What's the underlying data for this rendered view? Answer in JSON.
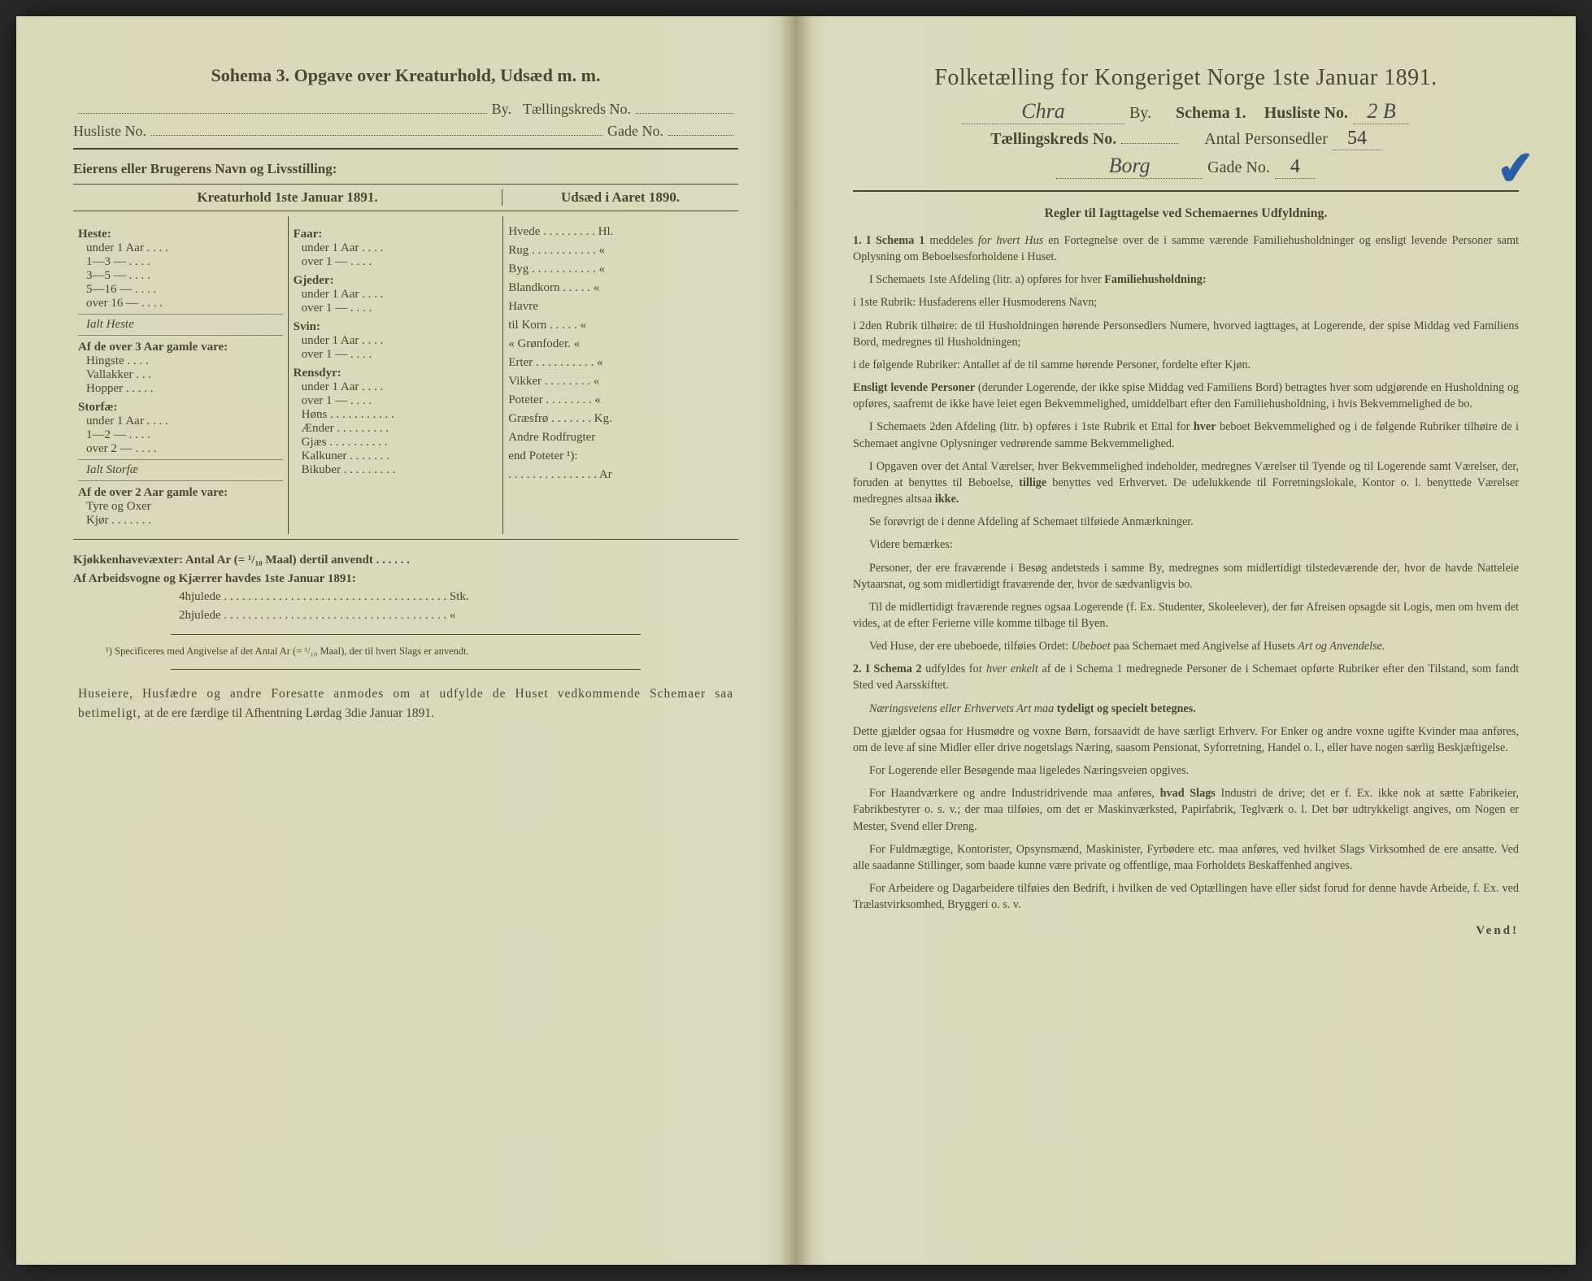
{
  "colors": {
    "paper": "#d9d8b8",
    "ink": "#4a4832",
    "handwriting": "#4a4a4a",
    "blue_pencil": "#2a5fa8"
  },
  "left": {
    "title": "Sohema 3.  Opgave over Kreaturhold, Udsæd m. m.",
    "line1_a": "By.",
    "line1_b": "Tællingskreds No.",
    "line2_a": "Husliste No.",
    "line2_b": "Gade No.",
    "owner_label": "Eierens eller Brugerens Navn og Livsstilling:",
    "col_head_left": "Kreaturhold 1ste Januar 1891.",
    "col_head_right": "Udsæd i Aaret 1890.",
    "groups_col1": [
      {
        "head": "Heste:",
        "items": [
          "under 1 Aar . . . .",
          "1—3  —  . . . .",
          "3—5  —  . . . .",
          "5—16  —  . . . .",
          "over 16 —  . . . ."
        ],
        "tail_italic": "Ialt Heste"
      },
      {
        "head": "Af de over 3 Aar gamle vare:",
        "items": [
          "Hingste . . . .",
          "Vallakker . . .",
          "Hopper . . . . ."
        ]
      },
      {
        "head": "Storfæ:",
        "items": [
          "under 1 Aar . . . .",
          "1—2  —  . . . .",
          "over 2  —  . . . ."
        ],
        "tail_italic": "Ialt Storfæ"
      },
      {
        "head": "Af de over 2 Aar gamle vare:",
        "items": [
          "Tyre og Oxer",
          "Kjør . . . . . . ."
        ]
      }
    ],
    "groups_col2": [
      {
        "head": "Faar:",
        "items": [
          "under 1 Aar . . . .",
          "over 1  —  . . . ."
        ]
      },
      {
        "head": "Gjeder:",
        "items": [
          "under 1 Aar . . . .",
          "over 1  —  . . . ."
        ]
      },
      {
        "head": "Svin:",
        "items": [
          "under 1 Aar . . . .",
          "over 1  —  . . . ."
        ]
      },
      {
        "head": "Rensdyr:",
        "items": [
          "under 1 Aar . . . .",
          "over 1  —  . . . ."
        ]
      },
      {
        "head": "",
        "items": [
          "Høns . . . . . . . . . . .",
          "Ænder . . . . . . . . .",
          "Gjæs . . . . . . . . . .",
          "Kalkuner . . . . . . ."
        ]
      },
      {
        "head": "",
        "items": [
          "Bikuber . . . . . . . . ."
        ]
      }
    ],
    "col3_items": [
      "Hvede . . . . . . . . . Hl.",
      "Rug . . . . . . . . . . .  «",
      "Byg . . . . . . . . . . .  «",
      "Blandkorn . . . . .  «",
      "Havre",
      "   til Korn . . . . .  «",
      "   « Grønfoder.  «",
      "Erter . . . . . . . . . .  «",
      "Vikker . . . . . . . .  «",
      "Poteter . . . . . . . .  «",
      "Græsfrø . . . . . . . Kg.",
      "Andre Rodfrugter",
      "   end Poteter ¹):",
      ". . . . . . . . . . . . . . . Ar"
    ],
    "kjokken": "Kjøkkenhavevæxter:  Antal Ar (= ¹/₁₀ Maal) dertil anvendt . . . . . .",
    "arbeids_label": "Af Arbeidsvogne og Kjærrer havdes 1ste Januar 1891:",
    "arbeids_4": "4hjulede . . . . . . . . . . . . . . . . . . . . . . . . . . . . . . . . . . . . . Stk.",
    "arbeids_2": "2hjulede . . . . . . . . . . . . . . . . . . . . . . . . . . . . . . . . . . . . .  «",
    "footnote": "¹) Specificeres med Angivelse af det Antal Ar (= ¹/₁₀ Maal), der til hvert Slags er anvendt.",
    "closing_a": "Huseiere, Husfædre og andre Foresatte anmodes om at udfylde de Huset vedkommende Schemaer saa betimeligt,",
    "closing_b": " at de ere færdige til Afhentning Lørdag 3die Januar 1891."
  },
  "right": {
    "title": "Folketælling for Kongeriget Norge 1ste Januar 1891.",
    "city_hand": "Chra",
    "by_label": "By.",
    "schema_label": "Schema 1.",
    "husliste_label": "Husliste No.",
    "husliste_hand": "2 B",
    "kreds_label": "Tællingskreds No.",
    "kreds_hand": "",
    "antal_label": "Antal Personsedler",
    "antal_hand": "54",
    "gade_hand_prefix": "Borg",
    "gade_label": "Gade No.",
    "gade_hand": "4",
    "check": "✔",
    "rules_title": "Regler til Iagttagelse ved Schemaernes Udfyldning.",
    "p1_a": "1.  I Schema 1",
    "p1_b": " meddeles ",
    "p1_c": "for hvert Hus",
    "p1_d": " en Fortegnelse over de i samme værende Familiehusholdninger og ensligt levende Personer samt Oplysning om Beboelsesforholdene i Huset.",
    "p2": "I Schemaets 1ste Afdeling (litr. a) opføres for hver ",
    "p2b": "Familiehusholdning:",
    "p3": "i 1ste Rubrik: Husfaderens eller Husmoderens Navn;",
    "p4": "i 2den Rubrik tilhøire: de til Husholdningen hørende Personsedlers Numere, hvorved iagttages, at Logerende, der spise Middag ved Familiens Bord, medregnes til Husholdningen;",
    "p5": "i de følgende Rubriker: Antallet af de til samme hørende Personer, fordelte efter Kjøn.",
    "p6a": "Ensligt levende Personer",
    "p6b": " (derunder Logerende, der ikke spise Middag ved Familiens Bord) betragtes hver som udgjørende en Husholdning og opføres, saafremt de ikke have leiet egen Bekvemmelighed, umiddelbart efter den Familiehusholdning, i hvis Bekvemmelighed de bo.",
    "p7a": "I Schemaets 2den Afdeling (litr. b) opføres i 1ste Rubrik et Ettal for ",
    "p7b": "hver",
    "p7c": " beboet Bekvemmelighed og i de følgende Rubriker tilhøire de i Schemaet angivne Oplysninger vedrørende samme Bekvemmelighed.",
    "p8a": "I Opgaven over det Antal Værelser, hver Bekvemmelighed indeholder, medregnes Værelser til Tyende og til Logerende samt Værelser, der, foruden at benyttes til Beboelse, ",
    "p8b": "tillige",
    "p8c": " benyttes ved Erhvervet.  De udelukkende til Forretningslokale, Kontor o. l. benyttede Værelser medregnes altsaa ",
    "p8d": "ikke.",
    "p9": "Se forøvrigt de i denne Afdeling af Schemaet tilføiede Anmærkninger.",
    "p10": "Videre bemærkes:",
    "p11": "Personer, der ere fraværende i Besøg andetsteds i samme By, medregnes som midlertidigt tilstedeværende der, hvor de havde Natteleie Nytaarsnat, og som midlertidigt fraværende der, hvor de sædvanligvis bo.",
    "p12": "Til de midlertidigt fraværende regnes ogsaa Logerende (f. Ex. Studenter, Skoleelever), der før Afreisen opsagde sit Logis, men om hvem det vides, at de efter Ferierne ville komme tilbage til Byen.",
    "p13a": "Ved Huse, der ere ubeboede, tilføies Ordet: ",
    "p13b": "Ubeboet",
    "p13c": " paa Schemaet med Angivelse af Husets ",
    "p13d": "Art og Anvendelse.",
    "p14a": "2.  I Schema 2",
    "p14b": " udfyldes for ",
    "p14c": "hver enkelt",
    "p14d": " af de i Schema 1 medregnede Personer de i Schemaet opførte Rubriker efter den Tilstand, som fandt Sted ved Aarsskiftet.",
    "p15a": "Næringsveiens eller Erhvervets Art maa ",
    "p15b": "tydeligt og specielt betegnes.",
    "p16": "Dette gjælder ogsaa for Husmødre og voxne Børn, forsaavidt de have særligt Erhverv.  For Enker og andre voxne ugifte Kvinder maa anføres, om de leve af sine Midler eller drive nogetslags Næring, saasom Pensionat, Syforretning, Handel o. l., eller have nogen særlig Beskjæftigelse.",
    "p17": "For Logerende eller Besøgende maa ligeledes Næringsveien opgives.",
    "p18a": "For Haandværkere og andre Industridrivende maa anføres, ",
    "p18b": "hvad Slags",
    "p18c": " Industri de drive; det er f. Ex. ikke nok at sætte Fabrikeier, Fabrikbestyrer o. s. v.; der maa tilføies, om det er Maskinværksted, Papirfabrik, Teglværk o. l.  Det bør udtrykkeligt angives, om Nogen er Mester, Svend eller Dreng.",
    "p19": "For Fuldmægtige, Kontorister, Opsynsmænd, Maskinister, Fyrbødere etc. maa anføres, ved hvilket Slags Virksomhed de ere ansatte.  Ved alle saadanne Stillinger, som baade kunne være private og offentlige, maa Forholdets Beskaffenhed angives.",
    "p20": "For Arbeidere og Dagarbeidere tilføies den Bedrift, i hvilken de ved Optællingen have eller sidst forud for denne havde Arbeide, f. Ex. ved Trælastvirksomhed, Bryggeri o. s. v.",
    "vend": "Vend!"
  }
}
